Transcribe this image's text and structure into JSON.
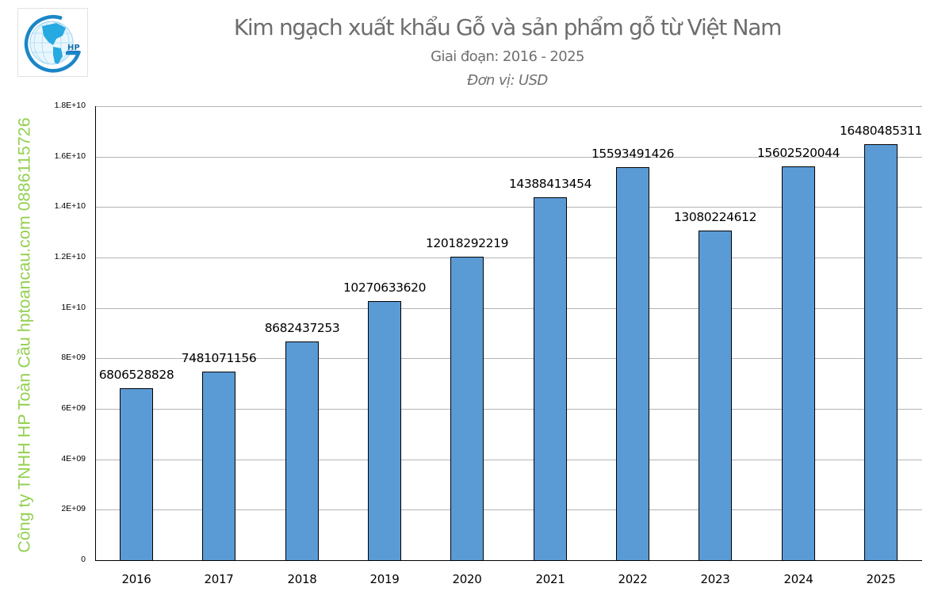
{
  "header": {
    "logo_icon": "globe-hp-logo-icon",
    "logo_text": "HP",
    "title": "Kim ngạch xuất khẩu Gỗ và sản phẩm gỗ từ Việt Nam",
    "subtitle": "Giai đoạn: 2016 - 2025",
    "unit": "Đơn vị: USD"
  },
  "watermark": {
    "text": "Công ty TNHH HP Toàn Cầu hptoancau.com 0886115726",
    "color": "#92D050"
  },
  "colors": {
    "bar_fill": "#5B9BD5",
    "bar_outline": "#000000",
    "gridline": "#B4B4B4",
    "title": "#6D6D6D"
  },
  "chart_data": {
    "type": "bar",
    "title": "Kim ngạch xuất khẩu Gỗ và sản phẩm gỗ từ Việt Nam",
    "subtitle": "Giai đoạn: 2016 - 2025",
    "unit": "Đơn vị: USD",
    "xlabel": "",
    "ylabel": "",
    "categories": [
      "2016",
      "2017",
      "2018",
      "2019",
      "2020",
      "2021",
      "2022",
      "2023",
      "2024",
      "2025"
    ],
    "values": [
      6806528828,
      7481071156,
      8682437253,
      10270633620,
      12018292219,
      14388413454,
      15593491426,
      13080224612,
      15602520044,
      16480485311
    ],
    "data_labels": [
      "6806528828",
      "7481071156",
      "8682437253",
      "10270633620",
      "12018292219",
      "14388413454",
      "15593491426",
      "13080224612",
      "15602520044",
      "16480485311"
    ],
    "ylim": [
      0,
      18000000000
    ],
    "yticks": [
      0,
      2000000000,
      4000000000,
      6000000000,
      8000000000,
      10000000000,
      12000000000,
      14000000000,
      16000000000,
      18000000000
    ],
    "ytick_labels": [
      "0",
      "2E+09",
      "4E+09",
      "6E+09",
      "8E+09",
      "1E+10",
      "1.2E+10",
      "1.4E+10",
      "1.6E+10",
      "1.8E+10"
    ],
    "grid": true,
    "legend": null
  }
}
